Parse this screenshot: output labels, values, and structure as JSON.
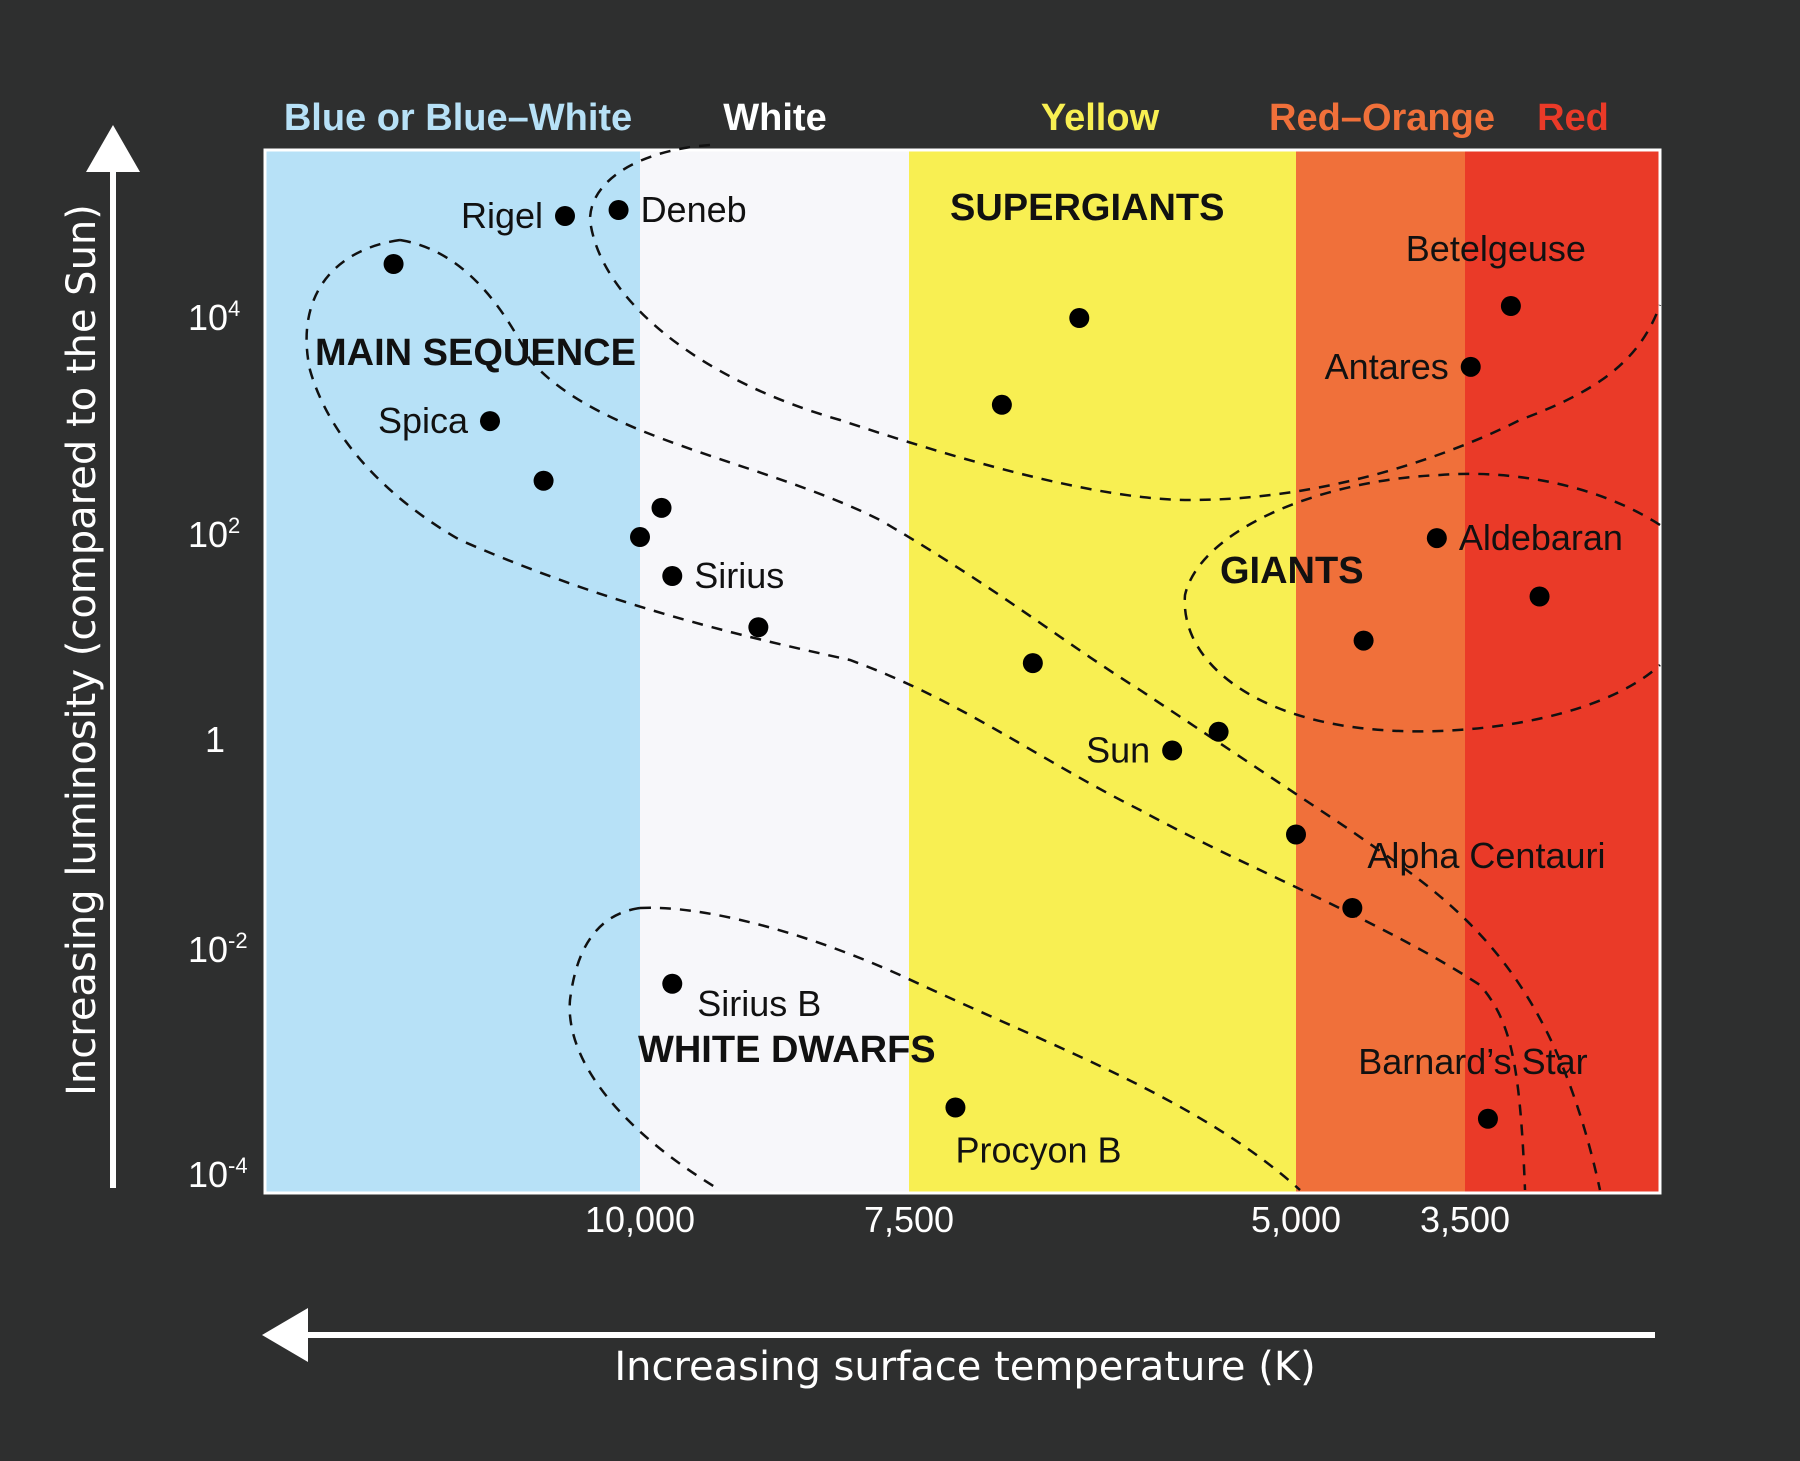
{
  "chart_data": {
    "type": "scatter",
    "title": "",
    "xlabel": "Increasing surface temperature (K)",
    "ylabel": "Increasing luminosity (compared to the Sun)",
    "x_ticks": [
      {
        "value": 10000,
        "label": "10,000"
      },
      {
        "value": 7500,
        "label": "7,500"
      },
      {
        "value": 5000,
        "label": "5,000"
      },
      {
        "value": 3500,
        "label": "3,500"
      }
    ],
    "y_ticks": [
      {
        "exp": 4,
        "base": "10",
        "sup": "4"
      },
      {
        "exp": 2,
        "base": "10",
        "sup": "2"
      },
      {
        "exp": 0,
        "base": "1",
        "sup": ""
      },
      {
        "exp": -2,
        "base": "10",
        "sup": "-2"
      },
      {
        "exp": -4,
        "base": "10",
        "sup": "-4"
      }
    ],
    "color_bands": [
      {
        "label": "Blue or Blue–White",
        "from": 13500,
        "to": 10000,
        "color": "#b7e1f7",
        "label_color": "#b7e1f7"
      },
      {
        "label": "White",
        "from": 10000,
        "to": 7500,
        "color": "#f7f7fa",
        "label_color": "#ffffff"
      },
      {
        "label": "Yellow",
        "from": 7500,
        "to": 5000,
        "color": "#f8ef52",
        "label_color": "#f8ef52"
      },
      {
        "label": "Red–Orange",
        "from": 5000,
        "to": 3500,
        "color": "#f0703a",
        "label_color": "#f0703a"
      },
      {
        "label": "Red",
        "from": 3500,
        "to": 1800,
        "color": "#ea3a28",
        "label_color": "#ea3a28"
      }
    ],
    "regions": [
      {
        "label": "MAIN SEQUENCE"
      },
      {
        "label": "SUPERGIANTS"
      },
      {
        "label": "GIANTS"
      },
      {
        "label": "WHITE DWARFS"
      }
    ],
    "stars": [
      {
        "name": "Rigel",
        "temp": 10700,
        "log_lum": 4.85,
        "label_side": "left"
      },
      {
        "name": "Deneb",
        "temp": 10200,
        "log_lum": 4.9,
        "label_side": "right"
      },
      {
        "name": "",
        "temp": 12300,
        "log_lum": 4.45
      },
      {
        "name": "Spica",
        "temp": 11400,
        "log_lum": 3.05,
        "label_side": "left"
      },
      {
        "name": "",
        "temp": 10900,
        "log_lum": 2.5
      },
      {
        "name": "",
        "temp": 9800,
        "log_lum": 2.25
      },
      {
        "name": "",
        "temp": 10000,
        "log_lum": 1.98
      },
      {
        "name": "Sirius",
        "temp": 9700,
        "log_lum": 1.6,
        "label_side": "right"
      },
      {
        "name": "",
        "temp": 8900,
        "log_lum": 1.1
      },
      {
        "name": "",
        "temp": 6900,
        "log_lum": 3.2
      },
      {
        "name": "",
        "temp": 6400,
        "log_lum": 4.0
      },
      {
        "name": "",
        "temp": 6700,
        "log_lum": 0.75
      },
      {
        "name": "Sun",
        "temp": 5800,
        "log_lum": -0.1,
        "label_side": "left"
      },
      {
        "name": "",
        "temp": 5500,
        "log_lum": 0.08
      },
      {
        "name": "Betelgeuse",
        "temp": 3100,
        "log_lum": 4.1,
        "label_side": "above"
      },
      {
        "name": "Antares",
        "temp": 3450,
        "log_lum": 3.55,
        "label_side": "left"
      },
      {
        "name": "Aldebaran",
        "temp": 3750,
        "log_lum": 1.97,
        "label_side": "right"
      },
      {
        "name": "",
        "temp": 2850,
        "log_lum": 1.4
      },
      {
        "name": "",
        "temp": 4400,
        "log_lum": 0.97
      },
      {
        "name": "",
        "temp": 5000,
        "log_lum": -0.9
      },
      {
        "name": "Alpha Centauri",
        "temp": 4500,
        "log_lum": -1.6,
        "label_side": "above-right"
      },
      {
        "name": "Sirius B",
        "temp": 9700,
        "log_lum": -2.3,
        "label_side": "below-right"
      },
      {
        "name": "Procyon B",
        "temp": 7200,
        "log_lum": -3.4,
        "label_side": "below"
      },
      {
        "name": "Barnard’s Star",
        "temp": 3300,
        "log_lum": -3.5,
        "label_side": "above"
      }
    ]
  },
  "colors": {
    "background": "#2e2f2f",
    "star": "#000000",
    "axis": "#ffffff"
  }
}
